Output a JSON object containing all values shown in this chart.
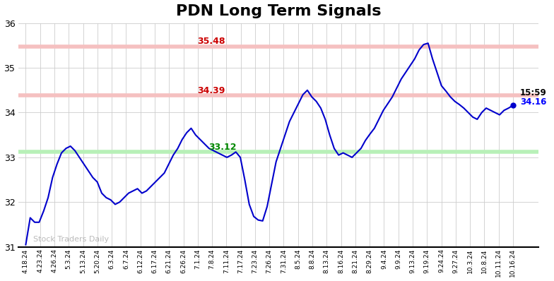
{
  "title": "PDN Long Term Signals",
  "ylim": [
    31.0,
    36.0
  ],
  "yticks": [
    31,
    32,
    33,
    34,
    35,
    36
  ],
  "hline_red1": 35.48,
  "hline_red2": 34.39,
  "hline_green": 33.12,
  "hline_red1_label": "35.48",
  "hline_red2_label": "34.39",
  "hline_green_label": "33.12",
  "last_price": 34.16,
  "last_time": "15:59",
  "watermark": "Stock Traders Daily",
  "line_color": "#0000cc",
  "red_hline_color": "#f5c0c0",
  "green_hline_color": "#b8f0b8",
  "background_color": "#ffffff",
  "grid_color": "#cccccc",
  "title_fontsize": 16,
  "x_labels": [
    "4.18.24",
    "4.23.24",
    "4.26.24",
    "5.3.24",
    "5.13.24",
    "5.20.24",
    "6.3.24",
    "6.7.24",
    "6.12.24",
    "6.17.24",
    "6.21.24",
    "6.26.24",
    "7.1.24",
    "7.8.24",
    "7.11.24",
    "7.17.24",
    "7.23.24",
    "7.26.24",
    "7.31.24",
    "8.5.24",
    "8.8.24",
    "8.13.24",
    "8.16.24",
    "8.21.24",
    "8.29.24",
    "9.4.24",
    "9.9.24",
    "9.13.24",
    "9.19.24",
    "9.24.24",
    "9.27.24",
    "10.3.24",
    "10.8.24",
    "10.11.24",
    "10.16.24"
  ],
  "prices": [
    31.05,
    31.65,
    31.55,
    31.55,
    31.8,
    32.1,
    32.55,
    32.85,
    33.1,
    33.2,
    33.25,
    33.15,
    33.0,
    32.85,
    32.7,
    32.55,
    32.45,
    32.2,
    32.1,
    32.05,
    31.95,
    32.0,
    32.1,
    32.2,
    32.25,
    32.3,
    32.2,
    32.25,
    32.35,
    32.45,
    32.55,
    32.65,
    32.85,
    33.05,
    33.2,
    33.4,
    33.55,
    33.65,
    33.5,
    33.4,
    33.3,
    33.2,
    33.15,
    33.1,
    33.05,
    33.0,
    33.05,
    33.12,
    33.0,
    32.5,
    31.95,
    31.68,
    31.6,
    31.58,
    31.9,
    32.4,
    32.9,
    33.2,
    33.5,
    33.8,
    34.0,
    34.2,
    34.4,
    34.5,
    34.35,
    34.25,
    34.1,
    33.85,
    33.5,
    33.2,
    33.05,
    33.1,
    33.05,
    33.0,
    33.1,
    33.2,
    33.38,
    33.52,
    33.65,
    33.85,
    34.05,
    34.2,
    34.35,
    34.55,
    34.75,
    34.9,
    35.05,
    35.2,
    35.4,
    35.52,
    35.55,
    35.2,
    34.9,
    34.6,
    34.48,
    34.35,
    34.25,
    34.18,
    34.1,
    34.0,
    33.9,
    33.85,
    34.0,
    34.1,
    34.05,
    34.0,
    33.95,
    34.05,
    34.1,
    34.16
  ]
}
